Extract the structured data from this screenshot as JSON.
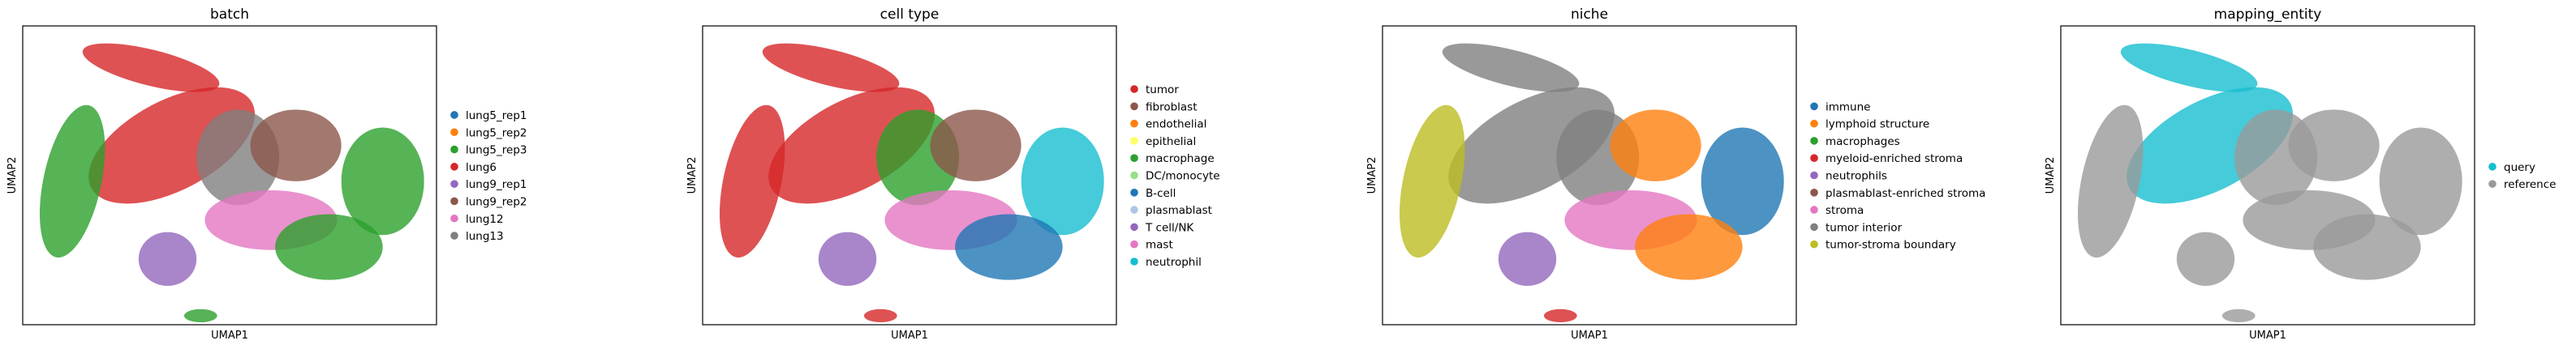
{
  "chart_data": [
    {
      "type": "scatter",
      "title": "batch",
      "xlabel": "UMAP1",
      "ylabel": "UMAP2",
      "grid": false,
      "legend": "right",
      "series": [
        {
          "name": "lung5_rep1",
          "color": "#1f77b4"
        },
        {
          "name": "lung5_rep2",
          "color": "#ff7f0e"
        },
        {
          "name": "lung5_rep3",
          "color": "#2ca02c"
        },
        {
          "name": "lung6",
          "color": "#d62728"
        },
        {
          "name": "lung9_rep1",
          "color": "#9467bd"
        },
        {
          "name": "lung9_rep2",
          "color": "#8c564b"
        },
        {
          "name": "lung12",
          "color": "#e377c2"
        },
        {
          "name": "lung13",
          "color": "#7f7f7f"
        }
      ]
    },
    {
      "type": "scatter",
      "title": "cell type",
      "xlabel": "UMAP1",
      "ylabel": "UMAP2",
      "grid": false,
      "legend": "right",
      "series": [
        {
          "name": "tumor",
          "color": "#d62728"
        },
        {
          "name": "fibroblast",
          "color": "#8c564b"
        },
        {
          "name": "endothelial",
          "color": "#ff7f0e"
        },
        {
          "name": "epithelial",
          "color": "#ffff66"
        },
        {
          "name": "macrophage",
          "color": "#2ca02c"
        },
        {
          "name": "DC/monocyte",
          "color": "#98df8a"
        },
        {
          "name": "B-cell",
          "color": "#1f77b4"
        },
        {
          "name": "plasmablast",
          "color": "#aec7e8"
        },
        {
          "name": "T cell/NK",
          "color": "#9467bd"
        },
        {
          "name": "mast",
          "color": "#e377c2"
        },
        {
          "name": "neutrophil",
          "color": "#17becf"
        }
      ]
    },
    {
      "type": "scatter",
      "title": "niche",
      "xlabel": "UMAP1",
      "ylabel": "UMAP2",
      "grid": false,
      "legend": "right",
      "series": [
        {
          "name": "immune",
          "color": "#1f77b4"
        },
        {
          "name": "lymphoid structure",
          "color": "#ff7f0e"
        },
        {
          "name": "macrophages",
          "color": "#2ca02c"
        },
        {
          "name": "myeloid-enriched stroma",
          "color": "#d62728"
        },
        {
          "name": "neutrophils",
          "color": "#9467bd"
        },
        {
          "name": "plasmablast-enriched stroma",
          "color": "#8c564b"
        },
        {
          "name": "stroma",
          "color": "#e377c2"
        },
        {
          "name": "tumor interior",
          "color": "#7f7f7f"
        },
        {
          "name": "tumor-stroma boundary",
          "color": "#bcbd22"
        }
      ]
    },
    {
      "type": "scatter",
      "title": "mapping_entity",
      "xlabel": "UMAP1",
      "ylabel": "UMAP2",
      "grid": false,
      "legend": "right",
      "series": [
        {
          "name": "query",
          "color": "#17becf"
        },
        {
          "name": "reference",
          "color": "#9a9a9a"
        }
      ]
    }
  ]
}
